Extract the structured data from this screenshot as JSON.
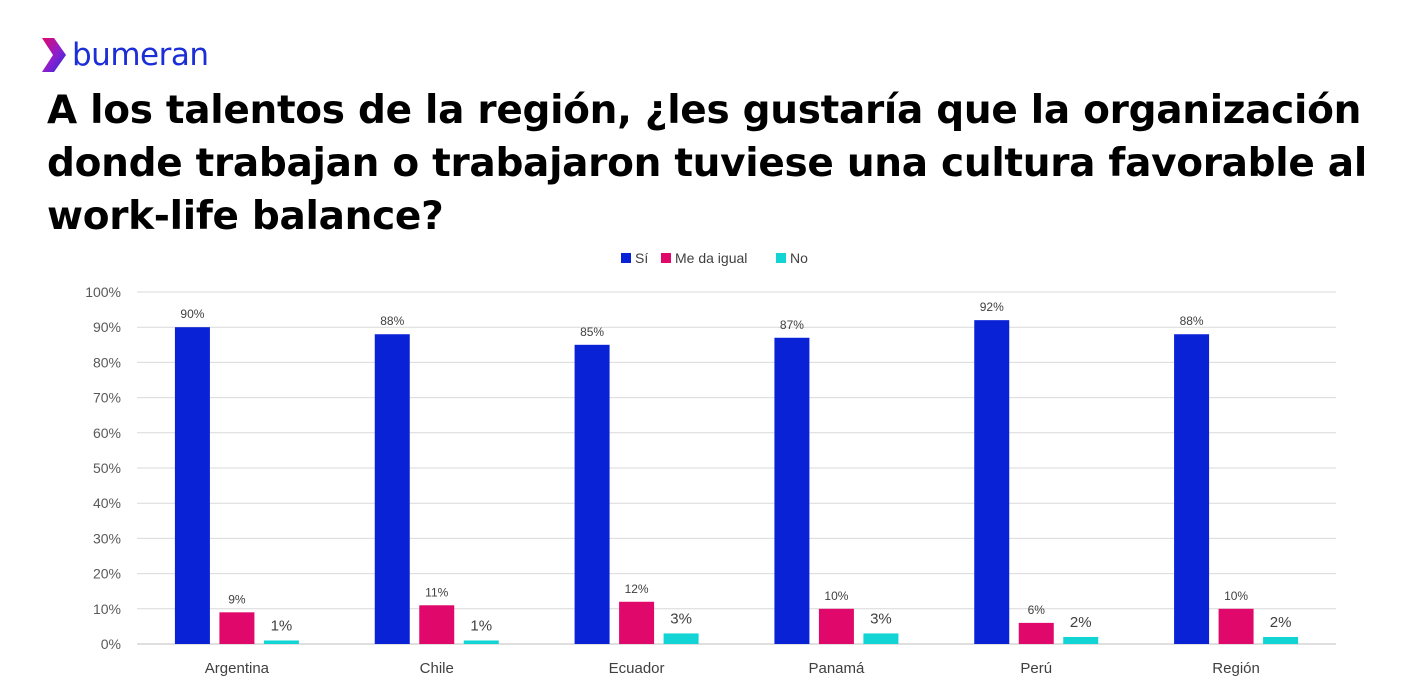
{
  "brand": {
    "name": "bumeran",
    "logo_icon": "chevron-arrow-icon"
  },
  "title": "A los talentos de la región, ¿les gustaría que la organización donde trabajan o trabajaron tuviese una cultura favorable al work-life balance?",
  "colors": {
    "brand": "#1c2ed6",
    "si": "#0a22d6",
    "igual": "#e0096b",
    "no": "#13d4d4"
  },
  "chart_data": {
    "type": "bar",
    "categories": [
      "Argentina",
      "Chile",
      "Ecuador",
      "Panamá",
      "Perú",
      "Región"
    ],
    "series": [
      {
        "name": "Sí",
        "color": "#0a22d6",
        "values": [
          90,
          88,
          85,
          87,
          92,
          88
        ],
        "labels": [
          "90%",
          "88%",
          "85%",
          "87%",
          "92%",
          "88%"
        ]
      },
      {
        "name": "Me da igual",
        "color": "#e0096b",
        "values": [
          9,
          11,
          12,
          10,
          6,
          10
        ],
        "labels": [
          "9%",
          "11%",
          "12%",
          "10%",
          "6%",
          "10%"
        ]
      },
      {
        "name": "No",
        "color": "#13d4d4",
        "values": [
          1,
          1,
          3,
          3,
          2,
          2
        ],
        "labels": [
          "1%",
          "1%",
          "3%",
          "3%",
          "2%",
          "2%"
        ]
      }
    ],
    "ylim": [
      0,
      100
    ],
    "yticks": [
      "0%",
      "10%",
      "20%",
      "30%",
      "40%",
      "50%",
      "60%",
      "70%",
      "80%",
      "90%",
      "100%"
    ],
    "grid": true,
    "legend": "top-center"
  }
}
